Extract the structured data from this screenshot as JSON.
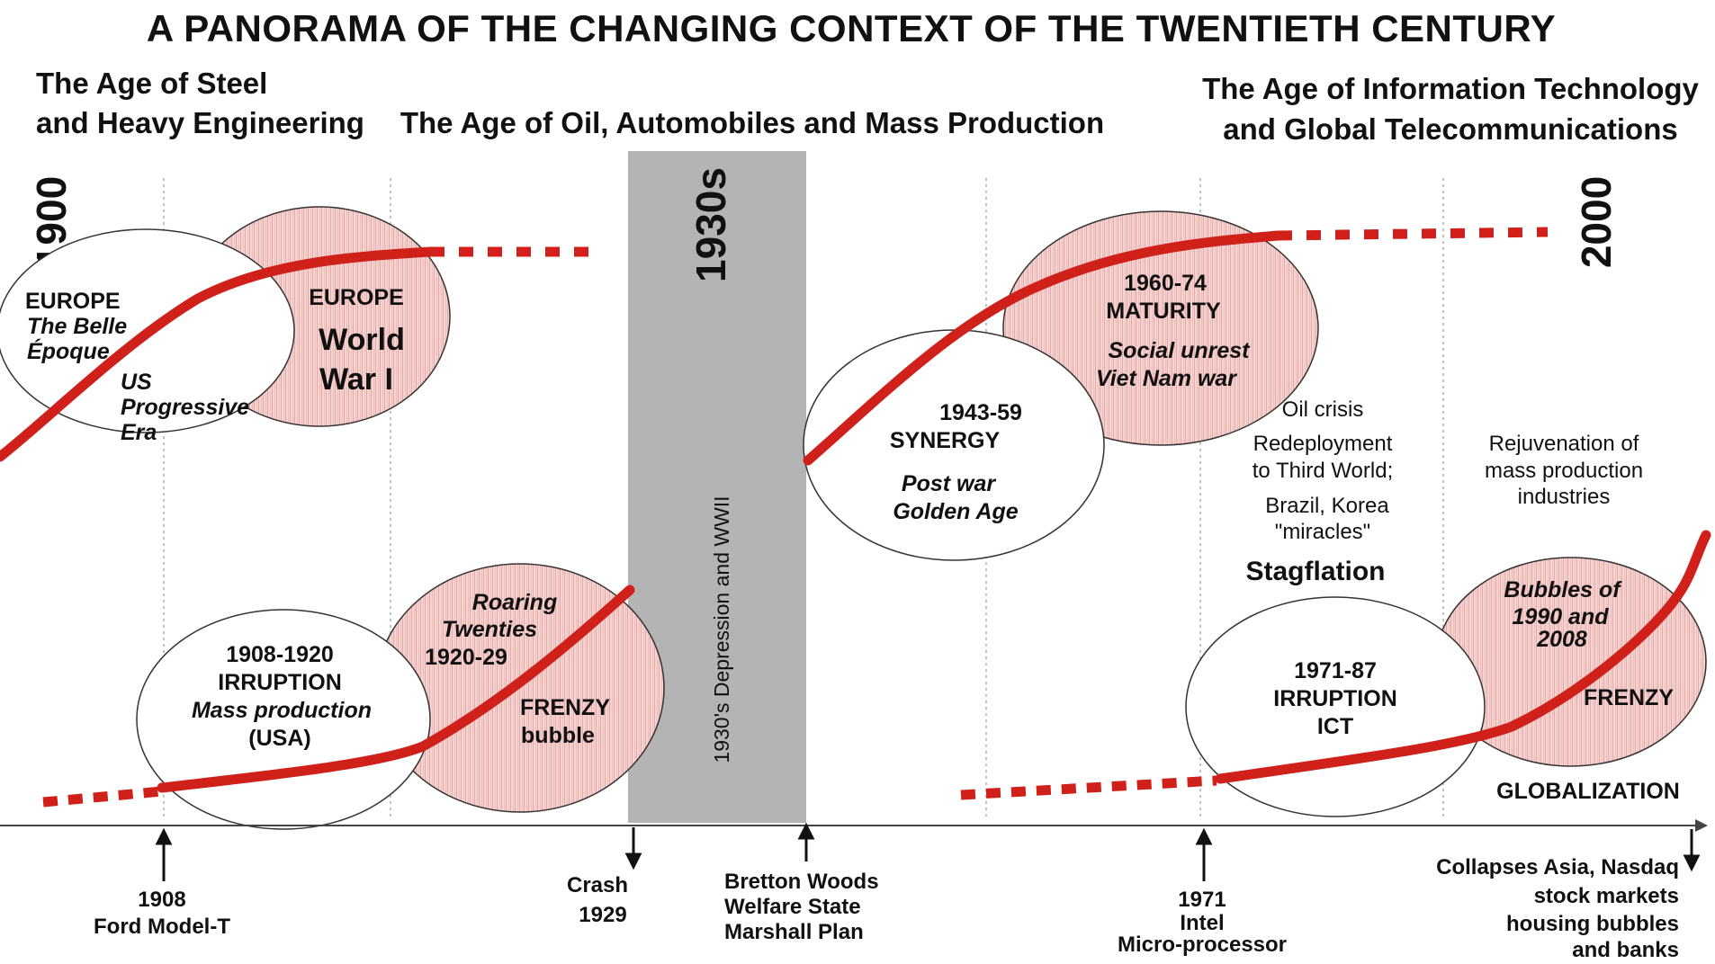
{
  "title": "A PANORAMA OF THE CHANGING CONTEXT OF THE TWENTIETH CENTURY",
  "eras": {
    "steel": [
      "The Age of Steel",
      "and Heavy Engineering"
    ],
    "oil": "The Age of Oil, Automobiles and Mass Production",
    "ict": [
      "The Age of Information Technology",
      "and Global Telecommunications"
    ]
  },
  "years": {
    "start": "1900",
    "thirties": "1930s",
    "end": "2000"
  },
  "depression_band": "1930's Depression and WWII",
  "ellipses": {
    "europe_belle": [
      "EUROPE",
      "The Belle",
      "Époque"
    ],
    "us_progressive": [
      "US",
      "Progressive",
      "Era"
    ],
    "europe_ww1": [
      "EUROPE",
      "World",
      "War I"
    ],
    "irruption_1908": [
      "1908-1920",
      "IRRUPTION",
      "Mass production",
      "(USA)"
    ],
    "roaring": [
      "Roaring",
      "Twenties",
      "1920-29"
    ],
    "frenzy_1920": [
      "FRENZY",
      "bubble"
    ],
    "synergy": [
      "1943-59",
      "SYNERGY",
      "Post war",
      "Golden Age"
    ],
    "maturity": [
      "1960-74",
      "MATURITY",
      "Social unrest",
      "Viet Nam war"
    ],
    "irruption_1971": [
      "1971-87",
      "IRRUPTION",
      "ICT"
    ],
    "bubbles": [
      "Bubbles of",
      "1990 and",
      "2008"
    ],
    "frenzy_ict": "FRENZY"
  },
  "annotations": {
    "oil_crisis": [
      "Oil crisis",
      "Redeployment",
      "to Third World;",
      "Brazil, Korea",
      "\"miracles\""
    ],
    "stagflation": "Stagflation",
    "rejuvenation": [
      "Rejuvenation of",
      "mass production",
      "industries"
    ],
    "globalization": "GLOBALIZATION"
  },
  "events": {
    "ford": [
      "1908",
      "Ford  Model-T"
    ],
    "crash": [
      "Crash",
      "1929"
    ],
    "bretton": [
      "Bretton Woods",
      "Welfare State",
      "Marshall Plan"
    ],
    "intel": [
      "1971",
      "Intel",
      "Micro-processor"
    ],
    "collapses": [
      "Collapses Asia, Nasdaq",
      "stock markets",
      "housing bubbles",
      "and banks"
    ]
  },
  "colors": {
    "curve": "#d0201a",
    "pink_fill": "#f3c9c7",
    "band": "#b4b4b4",
    "ink": "#111111"
  }
}
